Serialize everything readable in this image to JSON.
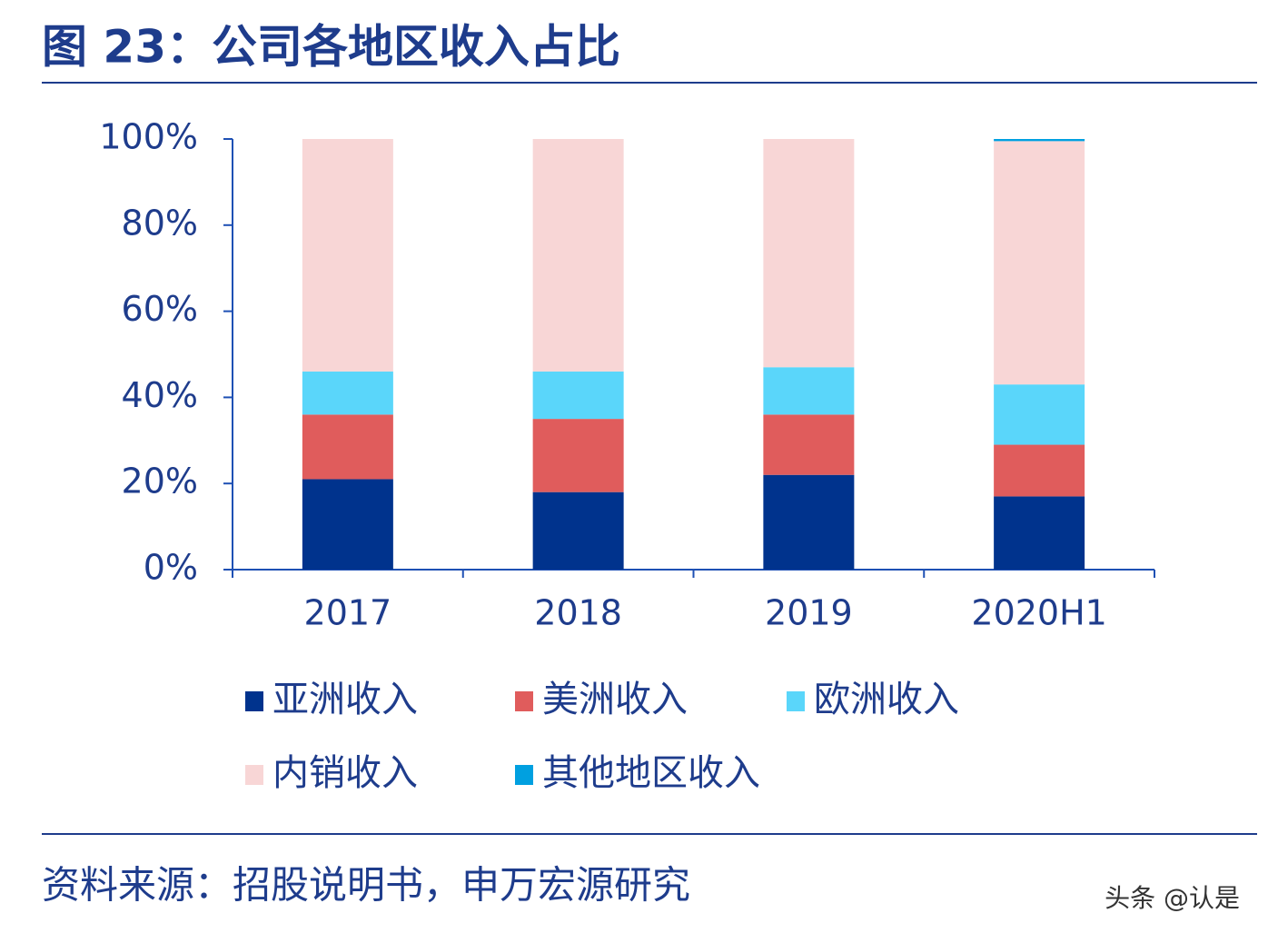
{
  "chart_data": {
    "type": "stacked_bar",
    "title": "图 23：公司各地区收入占比",
    "source": "资料来源：招股说明书，申万宏源研究",
    "watermark": "头条 @认是",
    "categories": [
      "2017",
      "2018",
      "2019",
      "2020H1"
    ],
    "series": [
      {
        "name": "亚洲收入",
        "color": "#00338d",
        "values": [
          21,
          18,
          22,
          17
        ]
      },
      {
        "name": "美洲收入",
        "color": "#e05c5c",
        "values": [
          15,
          17,
          14,
          12
        ]
      },
      {
        "name": "欧洲收入",
        "color": "#5ad6fa",
        "values": [
          10,
          11,
          11,
          14
        ]
      },
      {
        "name": "内销收入",
        "color": "#f8d6d6",
        "values": [
          54,
          54,
          53,
          56.5
        ]
      },
      {
        "name": "其他地区收入",
        "color": "#00a0e0",
        "values": [
          0,
          0,
          0,
          0.5
        ]
      }
    ],
    "ylim": [
      0,
      100
    ],
    "yticks": [
      {
        "value": 0,
        "label": "0%"
      },
      {
        "value": 20,
        "label": "20%"
      },
      {
        "value": 40,
        "label": "40%"
      },
      {
        "value": 60,
        "label": "60%"
      },
      {
        "value": 80,
        "label": "80%"
      },
      {
        "value": 100,
        "label": "100%"
      }
    ]
  }
}
